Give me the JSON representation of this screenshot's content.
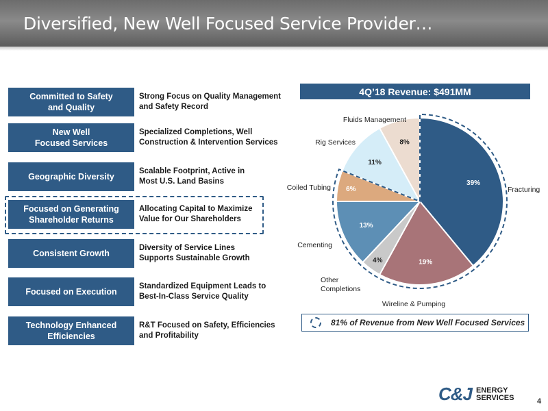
{
  "slide": {
    "title": "Diversified, New Well Focused Service Provider…",
    "page_number": "4"
  },
  "rows": [
    {
      "label": "Committed to Safety\nand Quality",
      "text": "Strong Focus on Quality Management\nand Safety Record"
    },
    {
      "label": "New Well\nFocused Services",
      "text": "Specialized Completions, Well\nConstruction & Intervention Services"
    },
    {
      "label": "Geographic Diversity",
      "text": "Scalable Footprint, Active in\nMost U.S. Land Basins"
    },
    {
      "label": "Focused on Generating\nShareholder Returns",
      "text": "Allocating Capital to Maximize\nValue for Our Shareholders"
    },
    {
      "label": "Consistent Growth",
      "text": "Diversity of Service Lines\nSupports Sustainable Growth"
    },
    {
      "label": "Focused on Execution",
      "text": "Standardized Equipment Leads to\nBest-In-Class Service Quality"
    },
    {
      "label": "Technology Enhanced\nEfficiencies",
      "text": "R&T Focused on Safety, Efficiencies\nand Profitability"
    }
  ],
  "chart_data": {
    "type": "pie",
    "title": "4Q’18 Revenue: $491MM",
    "slices": [
      {
        "name": "Fracturing",
        "value": 39,
        "label": "39%",
        "color": "#2f5b86"
      },
      {
        "name": "Wireline & Pumping",
        "value": 19,
        "label": "19%",
        "color": "#a87478"
      },
      {
        "name": "Other Completions",
        "value": 4,
        "label": "4%",
        "color": "#c9c9c9"
      },
      {
        "name": "Cementing",
        "value": 13,
        "label": "13%",
        "color": "#5d8fb5"
      },
      {
        "name": "Coiled Tubing",
        "value": 6,
        "label": "6%",
        "color": "#dca97e"
      },
      {
        "name": "Rig Services",
        "value": 11,
        "label": "11%",
        "color": "#d5edf8"
      },
      {
        "name": "Fluids Management",
        "value": 8,
        "label": "8%",
        "color": "#ecdcd0"
      }
    ],
    "footnote": "81% of Revenue from New Well Focused Services"
  },
  "logo": {
    "mark": "C&J",
    "line1": "ENERGY",
    "line2": "SERVICES"
  }
}
